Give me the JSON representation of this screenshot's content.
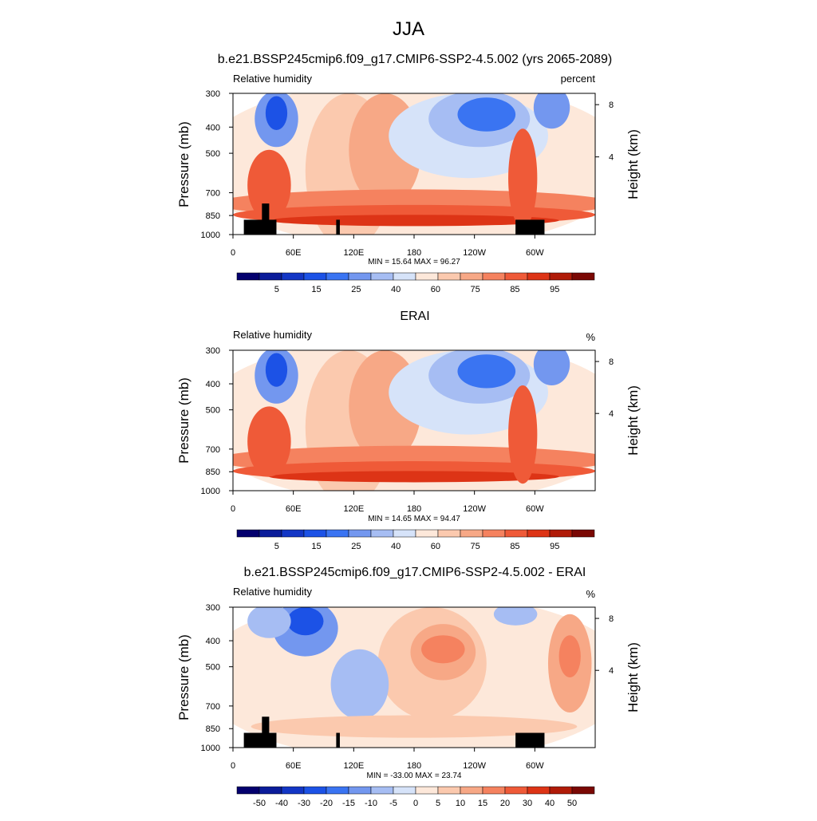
{
  "page_title": "JJA",
  "colors": {
    "land_mask": "#000000",
    "abs_palette": [
      "#04006e",
      "#0b1c9a",
      "#1336c5",
      "#1c52e6",
      "#3a74f2",
      "#7397ef",
      "#a6bdf3",
      "#d6e3f9",
      "#fde8da",
      "#fbc9ae",
      "#f7a886",
      "#f5825f",
      "#ef5a38",
      "#dd3416",
      "#b01b08",
      "#7a0804"
    ],
    "diff_palette": [
      "#04006e",
      "#0b1c9a",
      "#1336c5",
      "#1c52e6",
      "#3a74f2",
      "#7397ef",
      "#a6bdf3",
      "#d6e3f9",
      "#fde8da",
      "#fbc9ae",
      "#f7a886",
      "#f5825f",
      "#ef5a38",
      "#dd3416",
      "#b01b08",
      "#7a0804"
    ]
  },
  "chart_data": [
    {
      "type": "heatmap",
      "title": "b.e21.BSSP245cmip6.f09_g17.CMIP6-SSP2-4.5.002 (yrs 2065-2089)",
      "left_label": "Relative humidity",
      "right_label": "percent",
      "ylabel": "Pressure (mb)",
      "ylabel_right": "Height (km)",
      "x_ticks": [
        "0",
        "60E",
        "120E",
        "180",
        "120W",
        "60W"
      ],
      "y_ticks": [
        "300",
        "400",
        "500",
        "700",
        "850",
        "1000"
      ],
      "right_ticks": [
        "8",
        "4"
      ],
      "stats": "MIN =  15.64  MAX =  96.27",
      "colorbar_labels": [
        "5",
        "15",
        "25",
        "40",
        "60",
        "75",
        "85",
        "95"
      ],
      "min": 15.64,
      "max": 96.27
    },
    {
      "type": "heatmap",
      "title": "ERAI",
      "left_label": "Relative humidity",
      "right_label": "%",
      "ylabel": "Pressure (mb)",
      "ylabel_right": "Height (km)",
      "x_ticks": [
        "0",
        "60E",
        "120E",
        "180",
        "120W",
        "60W"
      ],
      "y_ticks": [
        "300",
        "400",
        "500",
        "700",
        "850",
        "1000"
      ],
      "right_ticks": [
        "8",
        "4"
      ],
      "stats": "MIN =  14.65  MAX =  94.47",
      "colorbar_labels": [
        "5",
        "15",
        "25",
        "40",
        "60",
        "75",
        "85",
        "95"
      ],
      "min": 14.65,
      "max": 94.47
    },
    {
      "type": "heatmap",
      "title": "b.e21.BSSP245cmip6.f09_g17.CMIP6-SSP2-4.5.002 - ERAI",
      "left_label": "Relative humidity",
      "right_label": "%",
      "ylabel": "Pressure (mb)",
      "ylabel_right": "Height (km)",
      "x_ticks": [
        "0",
        "60E",
        "120E",
        "180",
        "120W",
        "60W"
      ],
      "y_ticks": [
        "300",
        "400",
        "500",
        "700",
        "850",
        "1000"
      ],
      "right_ticks": [
        "8",
        "4"
      ],
      "stats": "MIN = -33.00  MAX =  23.74",
      "colorbar_labels": [
        "-50",
        "-40",
        "-30",
        "-20",
        "-15",
        "-10",
        "-5",
        "0",
        "5",
        "10",
        "15",
        "20",
        "30",
        "40",
        "50"
      ],
      "min": -33.0,
      "max": 23.74
    }
  ]
}
